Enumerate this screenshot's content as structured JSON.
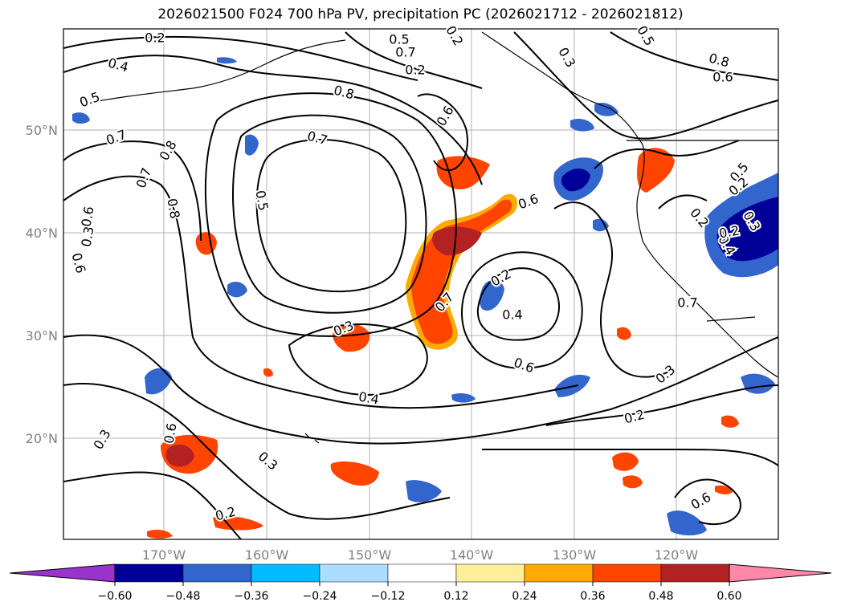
{
  "title": "2026021500 F024 700 hPa PV, precipitation PC (2026021712 - 2026021812)",
  "lat_labels": [
    "50°N",
    "40°N",
    "30°N",
    "20°N"
  ],
  "lon_labels": [
    "170°W",
    "160°W",
    "150°W",
    "140°W",
    "130°W",
    "120°W"
  ],
  "pv_contour_labels": [
    "0.2",
    "0.4",
    "0.5",
    "0.7",
    "0.8",
    "0.6",
    "0.8",
    "0.7",
    "0.5",
    "0.3",
    "0.2",
    "0.5",
    "0.7",
    "0.8",
    "0.6",
    "0.8",
    "0.7",
    "0.3",
    "0.6",
    "0.5",
    "0.6",
    "0.2",
    "0.7",
    "0.4",
    "0.6",
    "0.3",
    "0.6",
    "0.2",
    "0.6",
    "0.2",
    "0.3",
    "0.4",
    "0.3",
    "0.2",
    "0.6",
    "0.5",
    "0.7",
    "0.2",
    "0.4",
    "0.3",
    "0.2",
    "0.3",
    "0.2"
  ],
  "colorbar": {
    "ticks": [
      "−0.60",
      "−0.48",
      "−0.36",
      "−0.24",
      "−0.12",
      "0.12",
      "0.24",
      "0.36",
      "0.48",
      "0.60"
    ],
    "colors": [
      "#9933cc",
      "#000099",
      "#3366cc",
      "#00bbff",
      "#aaddff",
      "#ffffff",
      "#ffee99",
      "#ffaa00",
      "#ff4400",
      "#b22222",
      "#ff88aa"
    ]
  }
}
